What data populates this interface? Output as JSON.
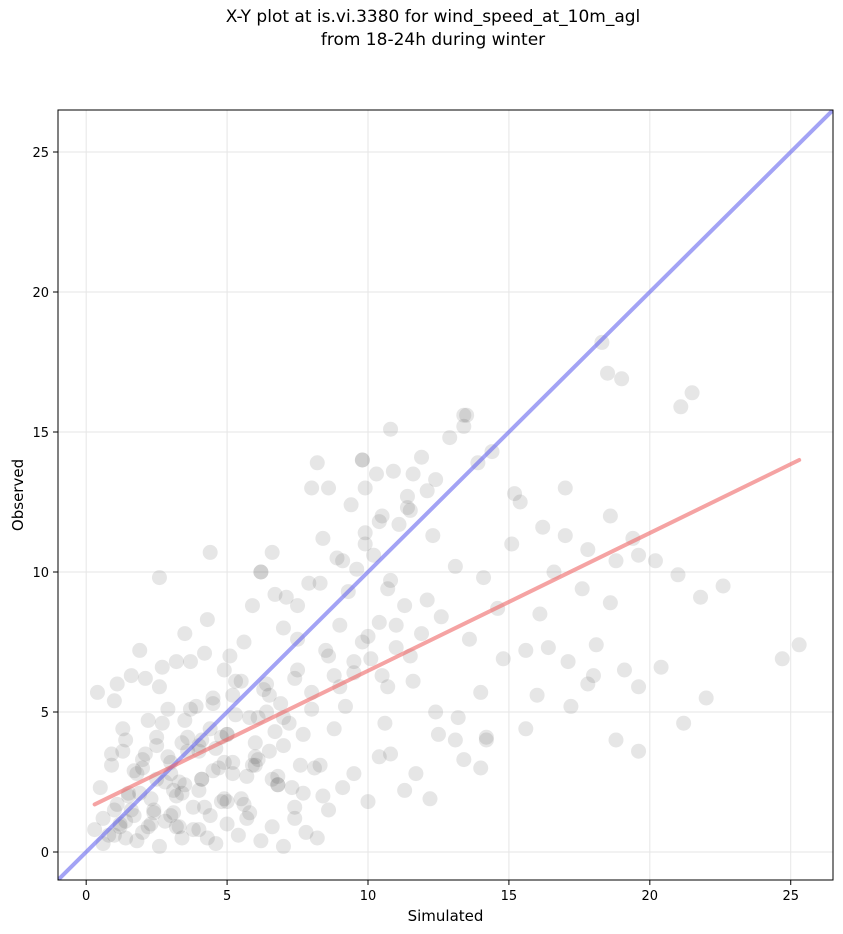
{
  "chart_data": {
    "type": "scatter",
    "title_line1": "X-Y plot at is.vi.3380 for wind_speed_at_10m_agl",
    "title_line2": "from 18-24h during winter",
    "xlabel": "Simulated",
    "ylabel": "Observed",
    "xlim": [
      -1,
      26.5
    ],
    "ylim": [
      -1,
      26.5
    ],
    "xticks": [
      0,
      5,
      10,
      15,
      20,
      25
    ],
    "yticks": [
      0,
      5,
      10,
      15,
      20,
      25
    ],
    "grid": true,
    "colors": {
      "points": "#333333",
      "identity_line": "#6666ee",
      "regression_line": "#ee6666",
      "grid": "#e6e6e6"
    },
    "identity_line": {
      "x": [
        -1,
        26.5
      ],
      "y": [
        -1,
        26.5
      ]
    },
    "regression_line": {
      "x": [
        0.3,
        25.3
      ],
      "y": [
        1.7,
        14.0
      ]
    },
    "series": [
      {
        "x": [
          0.3,
          0.6,
          0.8,
          1.0,
          1.2,
          1.5,
          1.7,
          2.0,
          2.3,
          2.5,
          2.8,
          3.0,
          3.3,
          3.5,
          3.8,
          4.0,
          4.3,
          4.5,
          4.8,
          5.0,
          0.5,
          0.9,
          1.1,
          1.4,
          1.8,
          2.1,
          2.4,
          2.7,
          3.1,
          3.4,
          3.7,
          4.1,
          4.4,
          4.7,
          5.2,
          5.5,
          5.8,
          6.1,
          6.4,
          6.8,
          1.0,
          1.3,
          1.6,
          1.9,
          2.2,
          2.6,
          2.9,
          3.2,
          3.6,
          3.9,
          4.2,
          4.6,
          4.9,
          5.3,
          5.6,
          6.0,
          6.3,
          6.7,
          7.0,
          7.4,
          1.2,
          1.5,
          2.0,
          2.4,
          2.8,
          3.2,
          3.6,
          4.0,
          4.4,
          4.8,
          5.2,
          5.6,
          6.0,
          6.4,
          6.8,
          7.2,
          7.6,
          8.0,
          8.4,
          8.8,
          1.1,
          1.9,
          2.7,
          3.5,
          4.3,
          5.1,
          5.9,
          6.7,
          7.5,
          8.3,
          9.1,
          9.9,
          10.7,
          11.5,
          12.3,
          1.4,
          2.3,
          3.1,
          4.0,
          4.9,
          5.7,
          6.6,
          7.4,
          8.3,
          9.1,
          10.0,
          10.8,
          11.7,
          12.5,
          13.4,
          14.2,
          8.6,
          9.0,
          9.3,
          9.6,
          9.9,
          10.2,
          10.5,
          10.8,
          11.1,
          11.4,
          9.2,
          9.5,
          9.8,
          10.1,
          10.4,
          10.7,
          11.0,
          11.3,
          11.6,
          11.9,
          7.9,
          8.4,
          8.9,
          9.4,
          9.9,
          10.4,
          10.9,
          11.4,
          11.9,
          12.4,
          12.9,
          13.4,
          13.9,
          14.4,
          12.1,
          12.6,
          13.1,
          13.6,
          14.1,
          14.6,
          15.1,
          15.6,
          16.1,
          16.6,
          17.1,
          17.6,
          18.1,
          18.6,
          19.1,
          19.6,
          13.2,
          14.0,
          14.8,
          15.6,
          16.4,
          17.2,
          18.0,
          18.8,
          19.6,
          20.4,
          21.2,
          22.0,
          15.4,
          16.2,
          17.0,
          17.8,
          18.6,
          19.4,
          20.2,
          21.0,
          21.8,
          22.6,
          24.7,
          25.3,
          18.3,
          18.5,
          19.0,
          21.1,
          21.5,
          9.8,
          10.3,
          10.8,
          13.5,
          12.1,
          6.2,
          6.6,
          7.1,
          7.5,
          8.2,
          8.6,
          0.4,
          0.9,
          1.3,
          1.7,
          2.1,
          2.5,
          2.9,
          3.3,
          3.7,
          4.1,
          4.5,
          4.9,
          5.3,
          5.7,
          6.1,
          6.5,
          6.9,
          7.3,
          7.7,
          8.1,
          0.6,
          1.0,
          1.4,
          1.8,
          2.2,
          2.6,
          3.0,
          3.4,
          3.8,
          4.2,
          4.6,
          5.0,
          5.4,
          5.8,
          6.2,
          6.6,
          7.0,
          7.4,
          7.8,
          8.2,
          2.0,
          2.5,
          3.0,
          3.5,
          4.0,
          4.5,
          5.0,
          5.5,
          6.0,
          6.5,
          7.0,
          7.5,
          8.0,
          8.5,
          9.0,
          9.5,
          10.0,
          10.5,
          11.0,
          11.5,
          3.2,
          4.1,
          5.0,
          5.9,
          6.8,
          7.7,
          8.6,
          9.5,
          10.4,
          11.3,
          12.2,
          13.1,
          14.0,
          2.6,
          4.4,
          6.2,
          8.0,
          9.8,
          11.6,
          13.4,
          15.2,
          17.0,
          18.8,
          1.6,
          3.4,
          5.2,
          7.0,
          8.8,
          10.6,
          12.4,
          14.2,
          16.0,
          17.8,
          19.6
        ],
        "y": [
          0.8,
          1.2,
          0.6,
          1.5,
          0.9,
          2.1,
          1.3,
          0.7,
          1.9,
          2.6,
          1.1,
          3.2,
          0.9,
          2.4,
          1.6,
          3.8,
          0.5,
          2.9,
          1.8,
          4.2,
          2.3,
          3.1,
          1.7,
          4.0,
          2.8,
          3.5,
          1.4,
          4.6,
          2.2,
          3.9,
          5.1,
          2.6,
          4.4,
          3.0,
          5.6,
          1.9,
          4.8,
          3.3,
          6.0,
          2.7,
          5.4,
          3.6,
          6.3,
          2.1,
          4.7,
          5.9,
          3.4,
          6.8,
          4.1,
          5.2,
          7.1,
          3.7,
          6.5,
          4.9,
          7.5,
          3.1,
          5.8,
          4.3,
          8.0,
          6.2,
          1.0,
          2.0,
          3.0,
          1.5,
          2.5,
          0.9,
          3.6,
          2.2,
          1.3,
          4.1,
          2.8,
          1.7,
          3.4,
          5.0,
          2.4,
          4.6,
          3.1,
          5.7,
          2.0,
          6.3,
          6.0,
          7.2,
          6.6,
          7.8,
          8.3,
          7.0,
          8.8,
          9.2,
          7.6,
          9.6,
          10.4,
          11.0,
          9.4,
          12.2,
          11.3,
          0.5,
          1.0,
          1.4,
          0.8,
          1.9,
          1.2,
          2.6,
          1.6,
          3.1,
          2.3,
          1.8,
          3.5,
          2.8,
          4.2,
          3.3,
          4.0,
          7.0,
          8.1,
          9.3,
          10.1,
          11.4,
          10.6,
          12.0,
          9.7,
          11.7,
          12.3,
          5.2,
          6.4,
          7.5,
          6.9,
          8.2,
          5.9,
          7.3,
          8.8,
          6.1,
          7.8,
          9.6,
          11.2,
          10.5,
          12.4,
          13.0,
          11.8,
          13.6,
          12.7,
          14.1,
          13.3,
          14.8,
          15.2,
          13.9,
          14.3,
          9.0,
          8.4,
          10.2,
          7.6,
          9.8,
          8.7,
          11.0,
          7.2,
          8.5,
          10.0,
          6.8,
          9.4,
          7.4,
          8.9,
          6.5,
          10.6,
          4.8,
          5.7,
          6.9,
          4.4,
          7.3,
          5.2,
          6.3,
          4.0,
          5.9,
          6.6,
          4.6,
          5.5,
          12.5,
          11.6,
          13.0,
          10.8,
          12.0,
          11.2,
          10.4,
          9.9,
          9.1,
          9.5,
          6.9,
          7.4,
          18.2,
          17.1,
          16.9,
          15.9,
          16.4,
          14.0,
          13.5,
          15.1,
          15.6,
          12.9,
          10.0,
          10.7,
          9.1,
          8.8,
          13.9,
          13.0,
          5.7,
          3.5,
          4.4,
          2.9,
          6.2,
          3.8,
          5.1,
          2.5,
          6.8,
          4.0,
          5.5,
          3.2,
          6.1,
          2.7,
          4.8,
          3.6,
          5.3,
          2.3,
          4.2,
          3.0,
          0.3,
          0.6,
          1.1,
          0.4,
          0.9,
          0.2,
          1.3,
          0.5,
          0.8,
          1.6,
          0.3,
          1.0,
          0.6,
          1.4,
          0.4,
          0.9,
          0.2,
          1.2,
          0.7,
          0.5,
          3.3,
          4.1,
          2.8,
          4.7,
          3.6,
          5.3,
          4.2,
          6.1,
          3.9,
          5.6,
          4.8,
          6.5,
          5.1,
          7.2,
          5.9,
          6.8,
          7.7,
          6.3,
          8.1,
          7.0,
          2.0,
          2.6,
          1.8,
          3.1,
          2.4,
          2.1,
          1.5,
          2.8,
          3.4,
          2.2,
          1.9,
          4.0,
          3.0,
          9.8,
          10.7,
          10.0,
          13.0,
          14.0,
          13.5,
          15.6,
          12.8,
          11.3,
          10.4,
          1.5,
          2.1,
          3.2,
          3.8,
          4.4,
          4.6,
          5.0,
          4.1,
          5.6,
          6.0,
          3.6
        ]
      }
    ]
  }
}
